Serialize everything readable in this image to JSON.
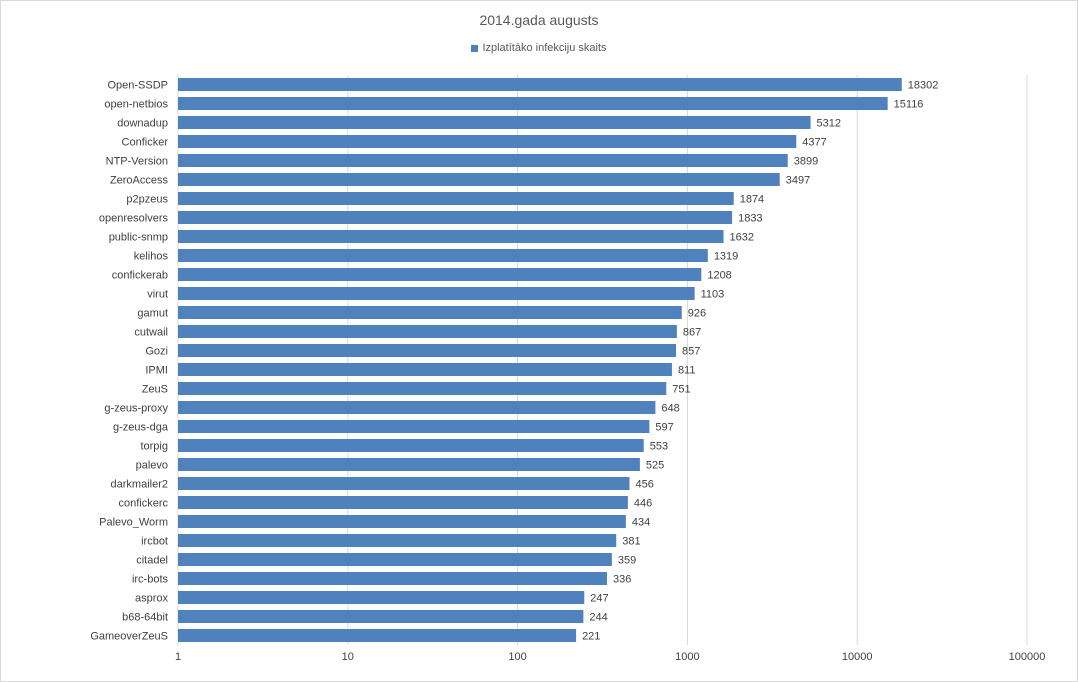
{
  "chart_data": {
    "type": "bar",
    "orientation": "horizontal",
    "title": "2014.gada augusts",
    "xlabel": "",
    "ylabel": "",
    "scale": "log",
    "xlim": [
      1,
      100000
    ],
    "tick_labels": [
      "1",
      "10",
      "100",
      "1000",
      "10000",
      "100000"
    ],
    "tick_values": [
      1,
      10,
      100,
      1000,
      10000,
      100000
    ],
    "grid": true,
    "legend_position": "top",
    "series": [
      {
        "name": "Izplatītāko infekciju skaits",
        "color": "#4f81bd"
      }
    ],
    "categories": [
      "Open-SSDP",
      "open-netbios",
      "downadup",
      "Conficker",
      "NTP-Version",
      "ZeroAccess",
      "p2pzeus",
      "openresolvers",
      "public-snmp",
      "kelihos",
      "confickerab",
      "virut",
      "gamut",
      "cutwail",
      "Gozi",
      "IPMI",
      "ZeuS",
      "g-zeus-proxy",
      "g-zeus-dga",
      "torpig",
      "palevo",
      "darkmailer2",
      "confickerc",
      "Palevo_Worm",
      "ircbot",
      "citadel",
      "irc-bots",
      "asprox",
      "b68-64bit",
      "GameoverZeuS"
    ],
    "values": [
      18302,
      15116,
      5312,
      4377,
      3899,
      3497,
      1874,
      1833,
      1632,
      1319,
      1208,
      1103,
      926,
      867,
      857,
      811,
      751,
      648,
      597,
      553,
      525,
      456,
      446,
      434,
      381,
      359,
      336,
      247,
      244,
      221
    ]
  }
}
